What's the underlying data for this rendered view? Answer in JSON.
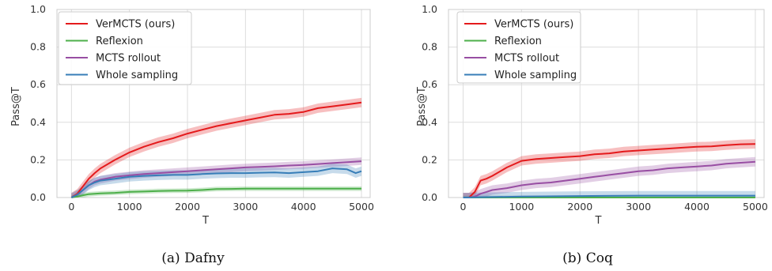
{
  "chart_data": [
    {
      "type": "line",
      "caption": "(a) Dafny",
      "xlabel": "T",
      "ylabel": "Pass@T",
      "xlim": [
        -250,
        5150
      ],
      "ylim": [
        0,
        1.0
      ],
      "xticks": [
        0,
        1000,
        2000,
        3000,
        4000,
        5000
      ],
      "yticks": [
        0.0,
        0.2,
        0.4,
        0.6,
        0.8,
        1.0
      ],
      "grid": true,
      "legend_position": "top-left",
      "series": [
        {
          "name": "VerMCTS (ours)",
          "color": "#e41a1c",
          "x": [
            0,
            100,
            200,
            300,
            400,
            500,
            750,
            1000,
            1250,
            1500,
            1750,
            2000,
            2250,
            2500,
            2750,
            3000,
            3250,
            3500,
            3750,
            4000,
            4250,
            4500,
            4750,
            5000
          ],
          "y": [
            0.0,
            0.02,
            0.06,
            0.1,
            0.13,
            0.155,
            0.2,
            0.24,
            0.27,
            0.295,
            0.315,
            0.34,
            0.36,
            0.38,
            0.395,
            0.41,
            0.425,
            0.44,
            0.445,
            0.455,
            0.475,
            0.485,
            0.495,
            0.505
          ],
          "band": 0.025
        },
        {
          "name": "Reflexion",
          "color": "#4daf4a",
          "x": [
            0,
            100,
            200,
            300,
            400,
            500,
            750,
            1000,
            1250,
            1500,
            1750,
            2000,
            2250,
            2500,
            2750,
            3000,
            3500,
            4000,
            4500,
            5000
          ],
          "y": [
            0.0,
            0.005,
            0.012,
            0.018,
            0.02,
            0.022,
            0.025,
            0.03,
            0.032,
            0.035,
            0.036,
            0.037,
            0.04,
            0.045,
            0.046,
            0.047,
            0.047,
            0.047,
            0.047,
            0.047
          ],
          "band": 0.012
        },
        {
          "name": "MCTS rollout",
          "color": "#984ea3",
          "x": [
            0,
            100,
            200,
            300,
            400,
            500,
            750,
            1000,
            1250,
            1500,
            1750,
            2000,
            2250,
            2500,
            2750,
            3000,
            3250,
            3500,
            3750,
            4000,
            4250,
            4500,
            4750,
            5000
          ],
          "y": [
            0.0,
            0.015,
            0.04,
            0.065,
            0.085,
            0.095,
            0.11,
            0.118,
            0.125,
            0.13,
            0.135,
            0.14,
            0.145,
            0.15,
            0.155,
            0.16,
            0.163,
            0.166,
            0.17,
            0.173,
            0.178,
            0.183,
            0.188,
            0.193
          ],
          "band": 0.02
        },
        {
          "name": "Whole sampling",
          "color": "#377eb8",
          "x": [
            0,
            100,
            200,
            300,
            400,
            500,
            750,
            1000,
            1250,
            1500,
            1750,
            2000,
            2250,
            2500,
            2750,
            3000,
            3250,
            3500,
            3750,
            4000,
            4250,
            4500,
            4750,
            4900,
            5000
          ],
          "y": [
            0.0,
            0.015,
            0.04,
            0.065,
            0.08,
            0.09,
            0.1,
            0.11,
            0.115,
            0.118,
            0.12,
            0.12,
            0.125,
            0.128,
            0.13,
            0.13,
            0.132,
            0.133,
            0.13,
            0.135,
            0.14,
            0.155,
            0.15,
            0.13,
            0.14
          ],
          "band": 0.025
        }
      ]
    },
    {
      "type": "line",
      "caption": "(b) Coq",
      "xlabel": "T",
      "ylabel": "Pass@T",
      "xlim": [
        -250,
        5150
      ],
      "ylim": [
        0,
        1.0
      ],
      "xticks": [
        0,
        1000,
        2000,
        3000,
        4000,
        5000
      ],
      "yticks": [
        0.0,
        0.2,
        0.4,
        0.6,
        0.8,
        1.0
      ],
      "grid": true,
      "legend_position": "top-left",
      "series": [
        {
          "name": "VerMCTS (ours)",
          "color": "#e41a1c",
          "x": [
            0,
            100,
            200,
            300,
            400,
            500,
            750,
            1000,
            1250,
            1500,
            1750,
            2000,
            2250,
            2500,
            2750,
            3000,
            3250,
            3500,
            3750,
            4000,
            4250,
            4500,
            4750,
            5000
          ],
          "y": [
            0.0,
            0.0,
            0.03,
            0.09,
            0.1,
            0.115,
            0.16,
            0.195,
            0.205,
            0.21,
            0.215,
            0.22,
            0.23,
            0.235,
            0.245,
            0.25,
            0.255,
            0.26,
            0.265,
            0.27,
            0.272,
            0.278,
            0.283,
            0.285
          ],
          "band": 0.025
        },
        {
          "name": "Reflexion",
          "color": "#4daf4a",
          "x": [
            0,
            1000,
            2000,
            3000,
            4000,
            5000
          ],
          "y": [
            0.0,
            0.0,
            0.0,
            0.0,
            0.0,
            0.0
          ],
          "band": 0.01
        },
        {
          "name": "MCTS rollout",
          "color": "#984ea3",
          "x": [
            0,
            100,
            200,
            300,
            400,
            500,
            750,
            1000,
            1250,
            1500,
            1750,
            2000,
            2250,
            2500,
            2750,
            3000,
            3250,
            3500,
            3750,
            4000,
            4250,
            4500,
            4750,
            5000
          ],
          "y": [
            0.0,
            0.0,
            0.005,
            0.02,
            0.03,
            0.04,
            0.05,
            0.065,
            0.075,
            0.08,
            0.09,
            0.1,
            0.11,
            0.12,
            0.13,
            0.14,
            0.145,
            0.155,
            0.16,
            0.165,
            0.17,
            0.18,
            0.185,
            0.19
          ],
          "band": 0.025
        },
        {
          "name": "Whole sampling",
          "color": "#377eb8",
          "x": [
            0,
            1000,
            2000,
            3000,
            4000,
            5000
          ],
          "y": [
            0.0,
            0.005,
            0.008,
            0.01,
            0.01,
            0.01
          ],
          "band": 0.025
        }
      ]
    }
  ]
}
